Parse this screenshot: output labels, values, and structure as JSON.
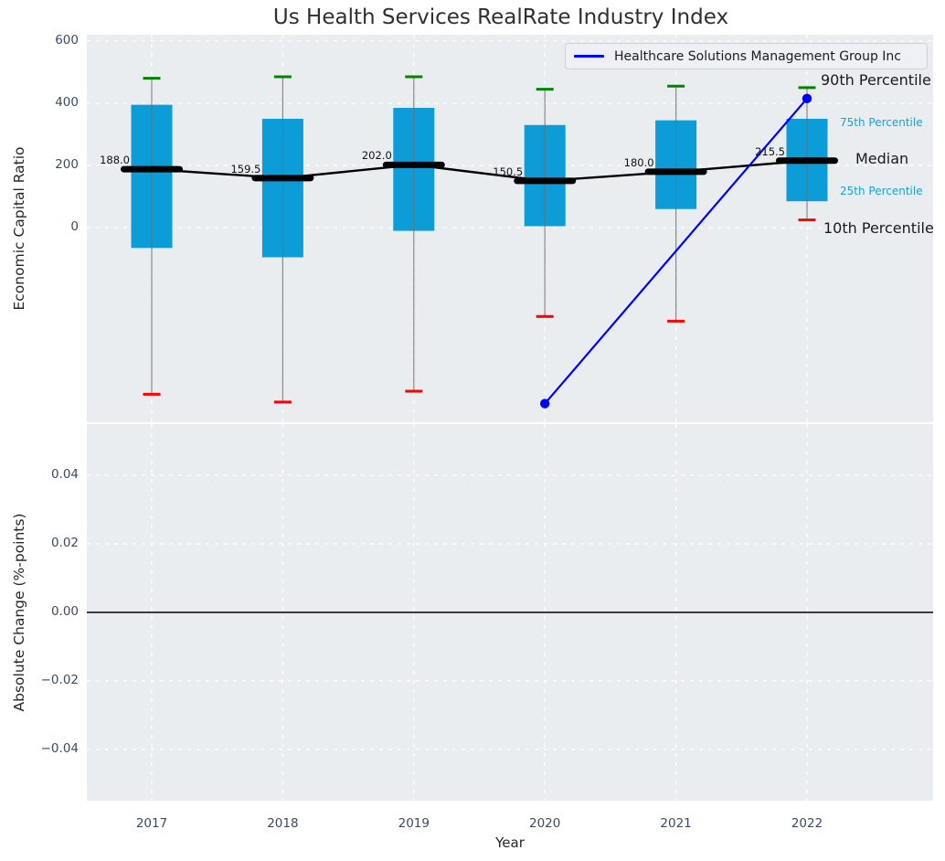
{
  "title": "Us Health Services RealRate Industry Index",
  "legend": {
    "label": "Healthcare Solutions Management Group Inc"
  },
  "annotations": {
    "p90": "90th Percentile",
    "p75": "75th Percentile",
    "median": "Median",
    "p25": "25th Percentile",
    "p10": "10th Percentile"
  },
  "axes": {
    "top": {
      "ylabel": "Economic Capital Ratio",
      "yticks": [
        600,
        400,
        200,
        0
      ]
    },
    "bottom": {
      "ylabel": "Absolute Change (%-points)",
      "yticks": [
        0.04,
        0.02,
        0,
        -0.02,
        -0.04
      ],
      "xlabel": "Year"
    }
  },
  "colors": {
    "box_fill": "#0c9cd8",
    "cap_top": "#008500",
    "cap_bottom": "#ff0000",
    "median_line": "#000000",
    "company_line": "#0000ff",
    "whisker": "#6f6f6f",
    "axes_bg": "#e9edf0",
    "grid": "#ffffff",
    "tick_label": "#3b4a63",
    "label_dark": "#1a1a1a",
    "label_cyan": "#18a1d9",
    "zero_line": "#000000"
  },
  "chart_data": [
    {
      "type": "boxplot",
      "title": "Us Health Services RealRate Industry Index",
      "ylabel": "Economic Capital Ratio",
      "categories": [
        2017,
        2018,
        2019,
        2020,
        2021,
        2022
      ],
      "ylim": [
        -625,
        620
      ],
      "yticks": [
        600,
        400,
        200,
        0
      ],
      "grid": true,
      "legend_position": "upper right",
      "percentiles": {
        "p90": [
          480,
          485,
          485,
          445,
          455,
          450
        ],
        "p75": [
          395,
          350,
          385,
          330,
          345,
          350
        ],
        "median": [
          188.0,
          159.5,
          202.0,
          150.5,
          180.0,
          215.5
        ],
        "p25": [
          -65,
          -95,
          -10,
          5,
          60,
          85
        ],
        "p10": [
          -535,
          -560,
          -525,
          -285,
          -300,
          25
        ]
      },
      "median_labels": [
        "188.0",
        "159.5",
        "202.0",
        "150.5",
        "180.0",
        "215.5"
      ],
      "series": [
        {
          "name": "Healthcare Solutions Management Group Inc",
          "x": [
            2020,
            2022
          ],
          "y": [
            -565,
            415
          ]
        }
      ]
    },
    {
      "type": "line",
      "ylabel": "Absolute Change (%-points)",
      "xlabel": "Year",
      "x_categories": [
        2017,
        2018,
        2019,
        2020,
        2021,
        2022
      ],
      "ylim": [
        -0.055,
        0.055
      ],
      "yticks": [
        0.04,
        0.02,
        0,
        -0.02,
        -0.04
      ],
      "zero_line": true,
      "grid": true,
      "series": []
    }
  ]
}
